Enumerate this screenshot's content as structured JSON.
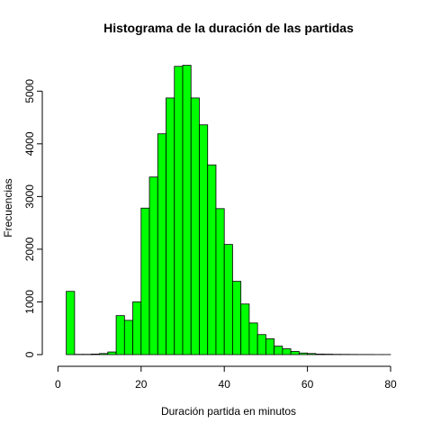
{
  "chart_data": {
    "type": "bar",
    "title": "Histograma de la duración de las partidas",
    "xlabel": "Duración partida en minutos",
    "ylabel": "Frecuencias",
    "bin_width": 2,
    "bin_edges": [
      2,
      4,
      6,
      8,
      10,
      12,
      14,
      16,
      18,
      20,
      22,
      24,
      26,
      28,
      30,
      32,
      34,
      36,
      38,
      40,
      42,
      44,
      46,
      48,
      50,
      52,
      54,
      56,
      58,
      60,
      62,
      64,
      66,
      68,
      70,
      72,
      74,
      76,
      78,
      80
    ],
    "values": [
      1200,
      5,
      5,
      10,
      20,
      50,
      740,
      650,
      1000,
      2780,
      3370,
      4190,
      4870,
      5470,
      5490,
      4870,
      4360,
      3600,
      2770,
      2090,
      1390,
      960,
      600,
      380,
      300,
      160,
      110,
      60,
      30,
      20,
      10,
      8,
      5,
      4,
      3,
      2,
      2,
      1,
      1
    ],
    "xlim": [
      0,
      80
    ],
    "ylim": [
      0,
      5500
    ],
    "x_ticks": [
      0,
      20,
      40,
      60,
      80
    ],
    "y_ticks": [
      0,
      1000,
      2000,
      3000,
      4000,
      5000
    ],
    "bar_color": "#00ff00",
    "bar_edge_color": "#000000",
    "grid": false,
    "legend": "none"
  }
}
